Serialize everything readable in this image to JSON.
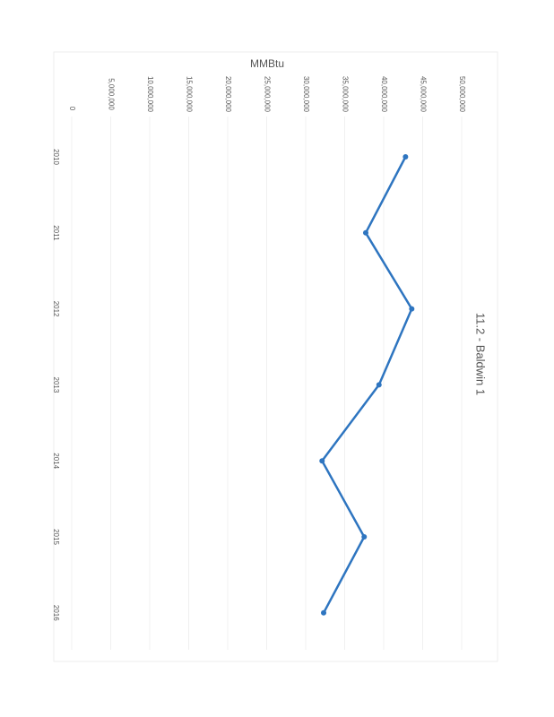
{
  "chart_data": {
    "type": "line",
    "title": "11.2 - Baldwin 1",
    "y_label": "MMBtu",
    "categories": [
      "2010",
      "2011",
      "2012",
      "2013",
      "2014",
      "2015",
      "2016"
    ],
    "series": [
      {
        "name": "Baldwin 1",
        "color": "#2e75c0",
        "values": [
          42800000,
          37700000,
          43600000,
          39400000,
          32100000,
          37500000,
          32300000
        ]
      }
    ],
    "ylim": [
      0,
      50000000
    ],
    "yticks": [
      0,
      {
        "value": 5000000,
        "label": "5,000,000"
      },
      {
        "value": 10000000,
        "label": "10,000,000"
      },
      {
        "value": 15000000,
        "label": "15,000,000"
      },
      {
        "value": 20000000,
        "label": "20,000,000"
      },
      {
        "value": 25000000,
        "label": "25,000,000"
      },
      {
        "value": 30000000,
        "label": "30,000,000"
      },
      {
        "value": 35000000,
        "label": "35,000,000"
      },
      {
        "value": 40000000,
        "label": "40,000,000"
      },
      {
        "value": 45000000,
        "label": "45,000,000"
      },
      {
        "value": 50000000,
        "label": "50,000,000"
      }
    ],
    "grid": true
  }
}
